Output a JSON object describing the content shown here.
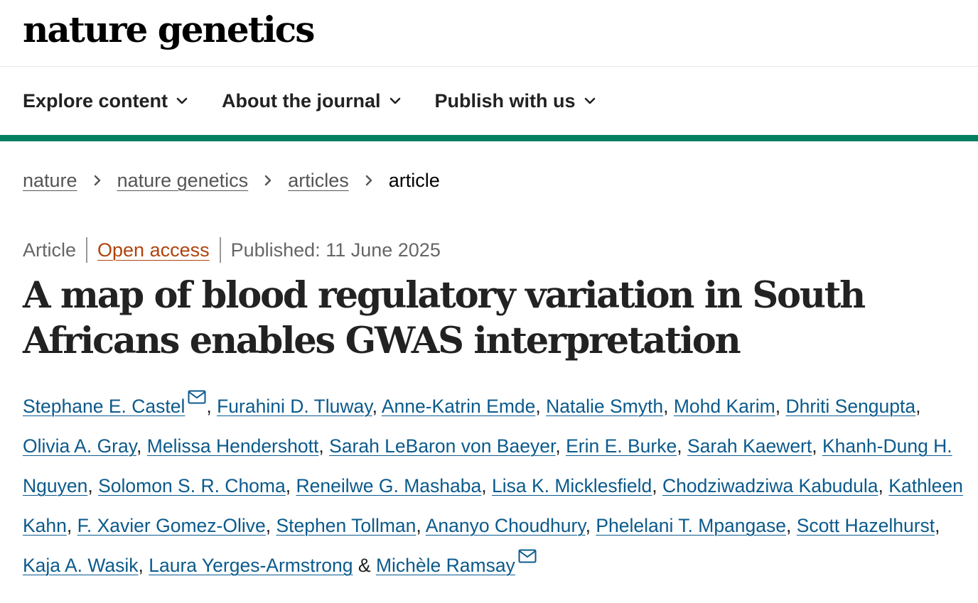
{
  "header": {
    "logo": "nature genetics"
  },
  "nav": {
    "items": [
      {
        "label": "Explore content"
      },
      {
        "label": "About the journal"
      },
      {
        "label": "Publish with us"
      }
    ]
  },
  "colors": {
    "accent": "#008060",
    "link": "#0b5a8c",
    "open_access": "#b0430d"
  },
  "breadcrumb": {
    "items": [
      "nature",
      "nature genetics",
      "articles"
    ],
    "current": "article"
  },
  "article": {
    "type": "Article",
    "access": "Open access",
    "published": "Published: 11 June 2025",
    "title": "A map of blood regulatory variation in South Africans enables GWAS interpretation"
  },
  "authors": [
    "Stephane E. Castel",
    "Furahini D. Tluway",
    "Anne-Katrin Emde",
    "Natalie Smyth",
    "Mohd Karim",
    "Dhriti Sengupta",
    "Olivia A. Gray",
    "Melissa Hendershott",
    "Sarah LeBaron von Baeyer",
    "Erin E. Burke",
    "Sarah Kaewert",
    "Khanh-Dung H. Nguyen",
    "Solomon S. R. Choma",
    "Reneilwe G. Mashaba",
    "Lisa K. Micklesfield",
    "Chodziwadziwa Kabudula",
    "Kathleen Kahn",
    "F. Xavier Gomez-Olive",
    "Stephen Tollman",
    "Ananyo Choudhury",
    "Phelelani T. Mpangase",
    "Scott Hazelhurst",
    "Kaja A. Wasik",
    "Laura Yerges-Armstrong",
    "Michèle Ramsay"
  ],
  "authors_separators": {
    "comma": ",",
    "and": "&"
  },
  "icons": {
    "nav_chevron": "chevron-down-icon",
    "crumb_sep": "chevron-right-icon",
    "contact": "mail-icon"
  }
}
